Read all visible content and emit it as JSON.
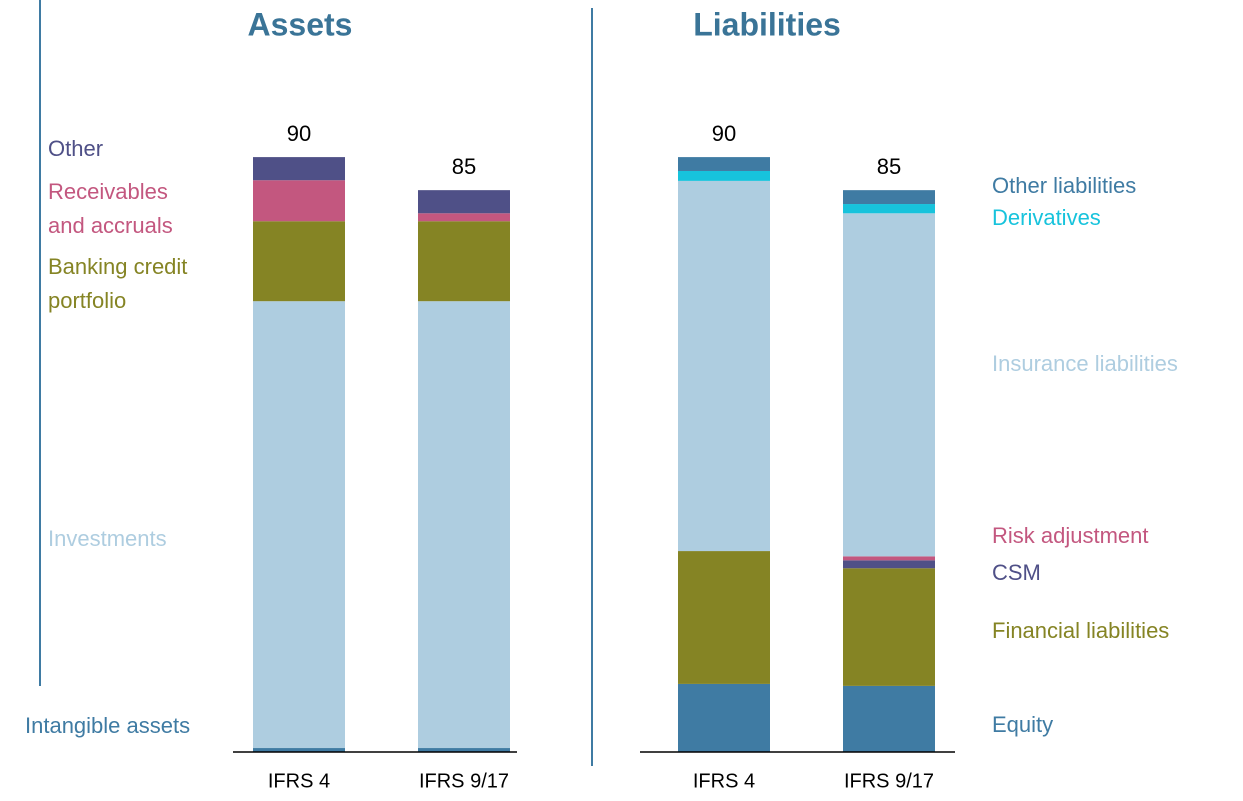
{
  "chart_data": [
    {
      "type": "bar",
      "stacked": true,
      "title": "Assets",
      "categories": [
        "IFRS 4",
        "IFRS 9/17"
      ],
      "totals": [
        90,
        85
      ],
      "series": [
        {
          "name": "Intangible assets",
          "color": "#3f7ba3",
          "values": [
            0.6,
            0.6
          ]
        },
        {
          "name": "Investments",
          "color": "#aecde0",
          "values": [
            67.6,
            67.6
          ]
        },
        {
          "name": "Banking credit portfolio",
          "color": "#858424",
          "values": [
            12.1,
            12.1
          ]
        },
        {
          "name": "Receivables and accruals",
          "color": "#c3577f",
          "values": [
            6.2,
            1.2
          ]
        },
        {
          "name": "Other",
          "color": "#4f5087",
          "values": [
            3.5,
            3.5
          ]
        }
      ]
    },
    {
      "type": "bar",
      "stacked": true,
      "title": "Liabilities",
      "categories": [
        "IFRS 4",
        "IFRS 9/17"
      ],
      "totals": [
        90,
        85
      ],
      "series": [
        {
          "name": "Equity",
          "color": "#3f7ba3",
          "values": [
            10.3,
            10.0
          ]
        },
        {
          "name": "Financial liabilities",
          "color": "#858424",
          "values": [
            20.1,
            17.8
          ]
        },
        {
          "name": "CSM",
          "color": "#4f5087",
          "values": [
            0,
            1.2
          ]
        },
        {
          "name": "Risk adjustment",
          "color": "#c3577f",
          "values": [
            0,
            0.6
          ]
        },
        {
          "name": "Insurance liabilities",
          "color": "#aecde0",
          "values": [
            56.0,
            51.9
          ]
        },
        {
          "name": "Derivatives",
          "color": "#17c3dc",
          "values": [
            1.5,
            1.4
          ]
        },
        {
          "name": "Other liabilities",
          "color": "#3f7ba3",
          "values": [
            2.1,
            2.1
          ]
        }
      ]
    }
  ]
}
